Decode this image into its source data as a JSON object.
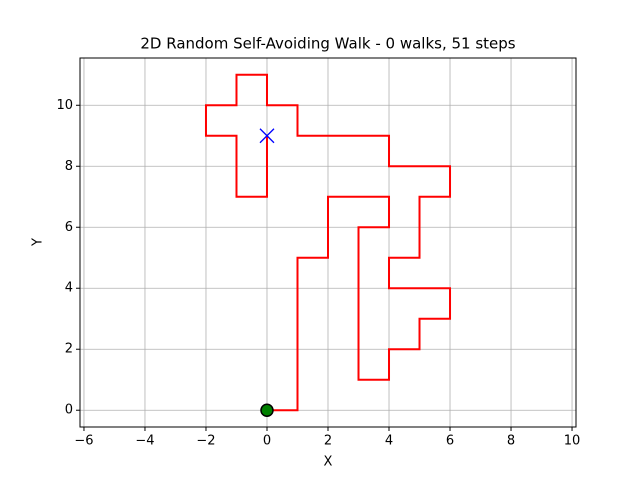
{
  "chart_data": {
    "type": "line",
    "title": "2D Random Self-Avoiding Walk - 0 walks, 51 steps",
    "x_label": "X",
    "y_label": "Y",
    "series": [
      {
        "color": "#ff0000",
        "x": [
          0,
          1,
          1,
          2,
          2,
          4,
          4,
          3,
          3,
          4,
          4,
          5,
          5,
          6,
          6,
          4,
          4,
          5,
          5,
          6,
          6,
          4,
          4,
          1,
          1,
          0,
          0,
          -1,
          -1,
          -2,
          -2,
          -1,
          -1,
          0,
          0
        ],
        "values": [
          0,
          0,
          5,
          5,
          7,
          7,
          6,
          6,
          1,
          1,
          2,
          2,
          3,
          3,
          4,
          4,
          5,
          5,
          7,
          7,
          8,
          8,
          9,
          9,
          10,
          10,
          11,
          11,
          10,
          10,
          9,
          9,
          7,
          7,
          9
        ]
      }
    ],
    "start_color": "#008000",
    "end_color": "#0000ff",
    "xlim": [
      -6.13,
      10.13
    ],
    "ylim": [
      -0.55,
      11.55
    ],
    "xticks": [
      {
        "value": -6,
        "label": "−6"
      },
      {
        "value": -4,
        "label": "−4"
      },
      {
        "value": -2,
        "label": "−2"
      },
      0,
      2,
      4,
      6,
      8,
      10
    ],
    "yticks": [
      0,
      2,
      4,
      6,
      8,
      10
    ],
    "grid": true
  }
}
